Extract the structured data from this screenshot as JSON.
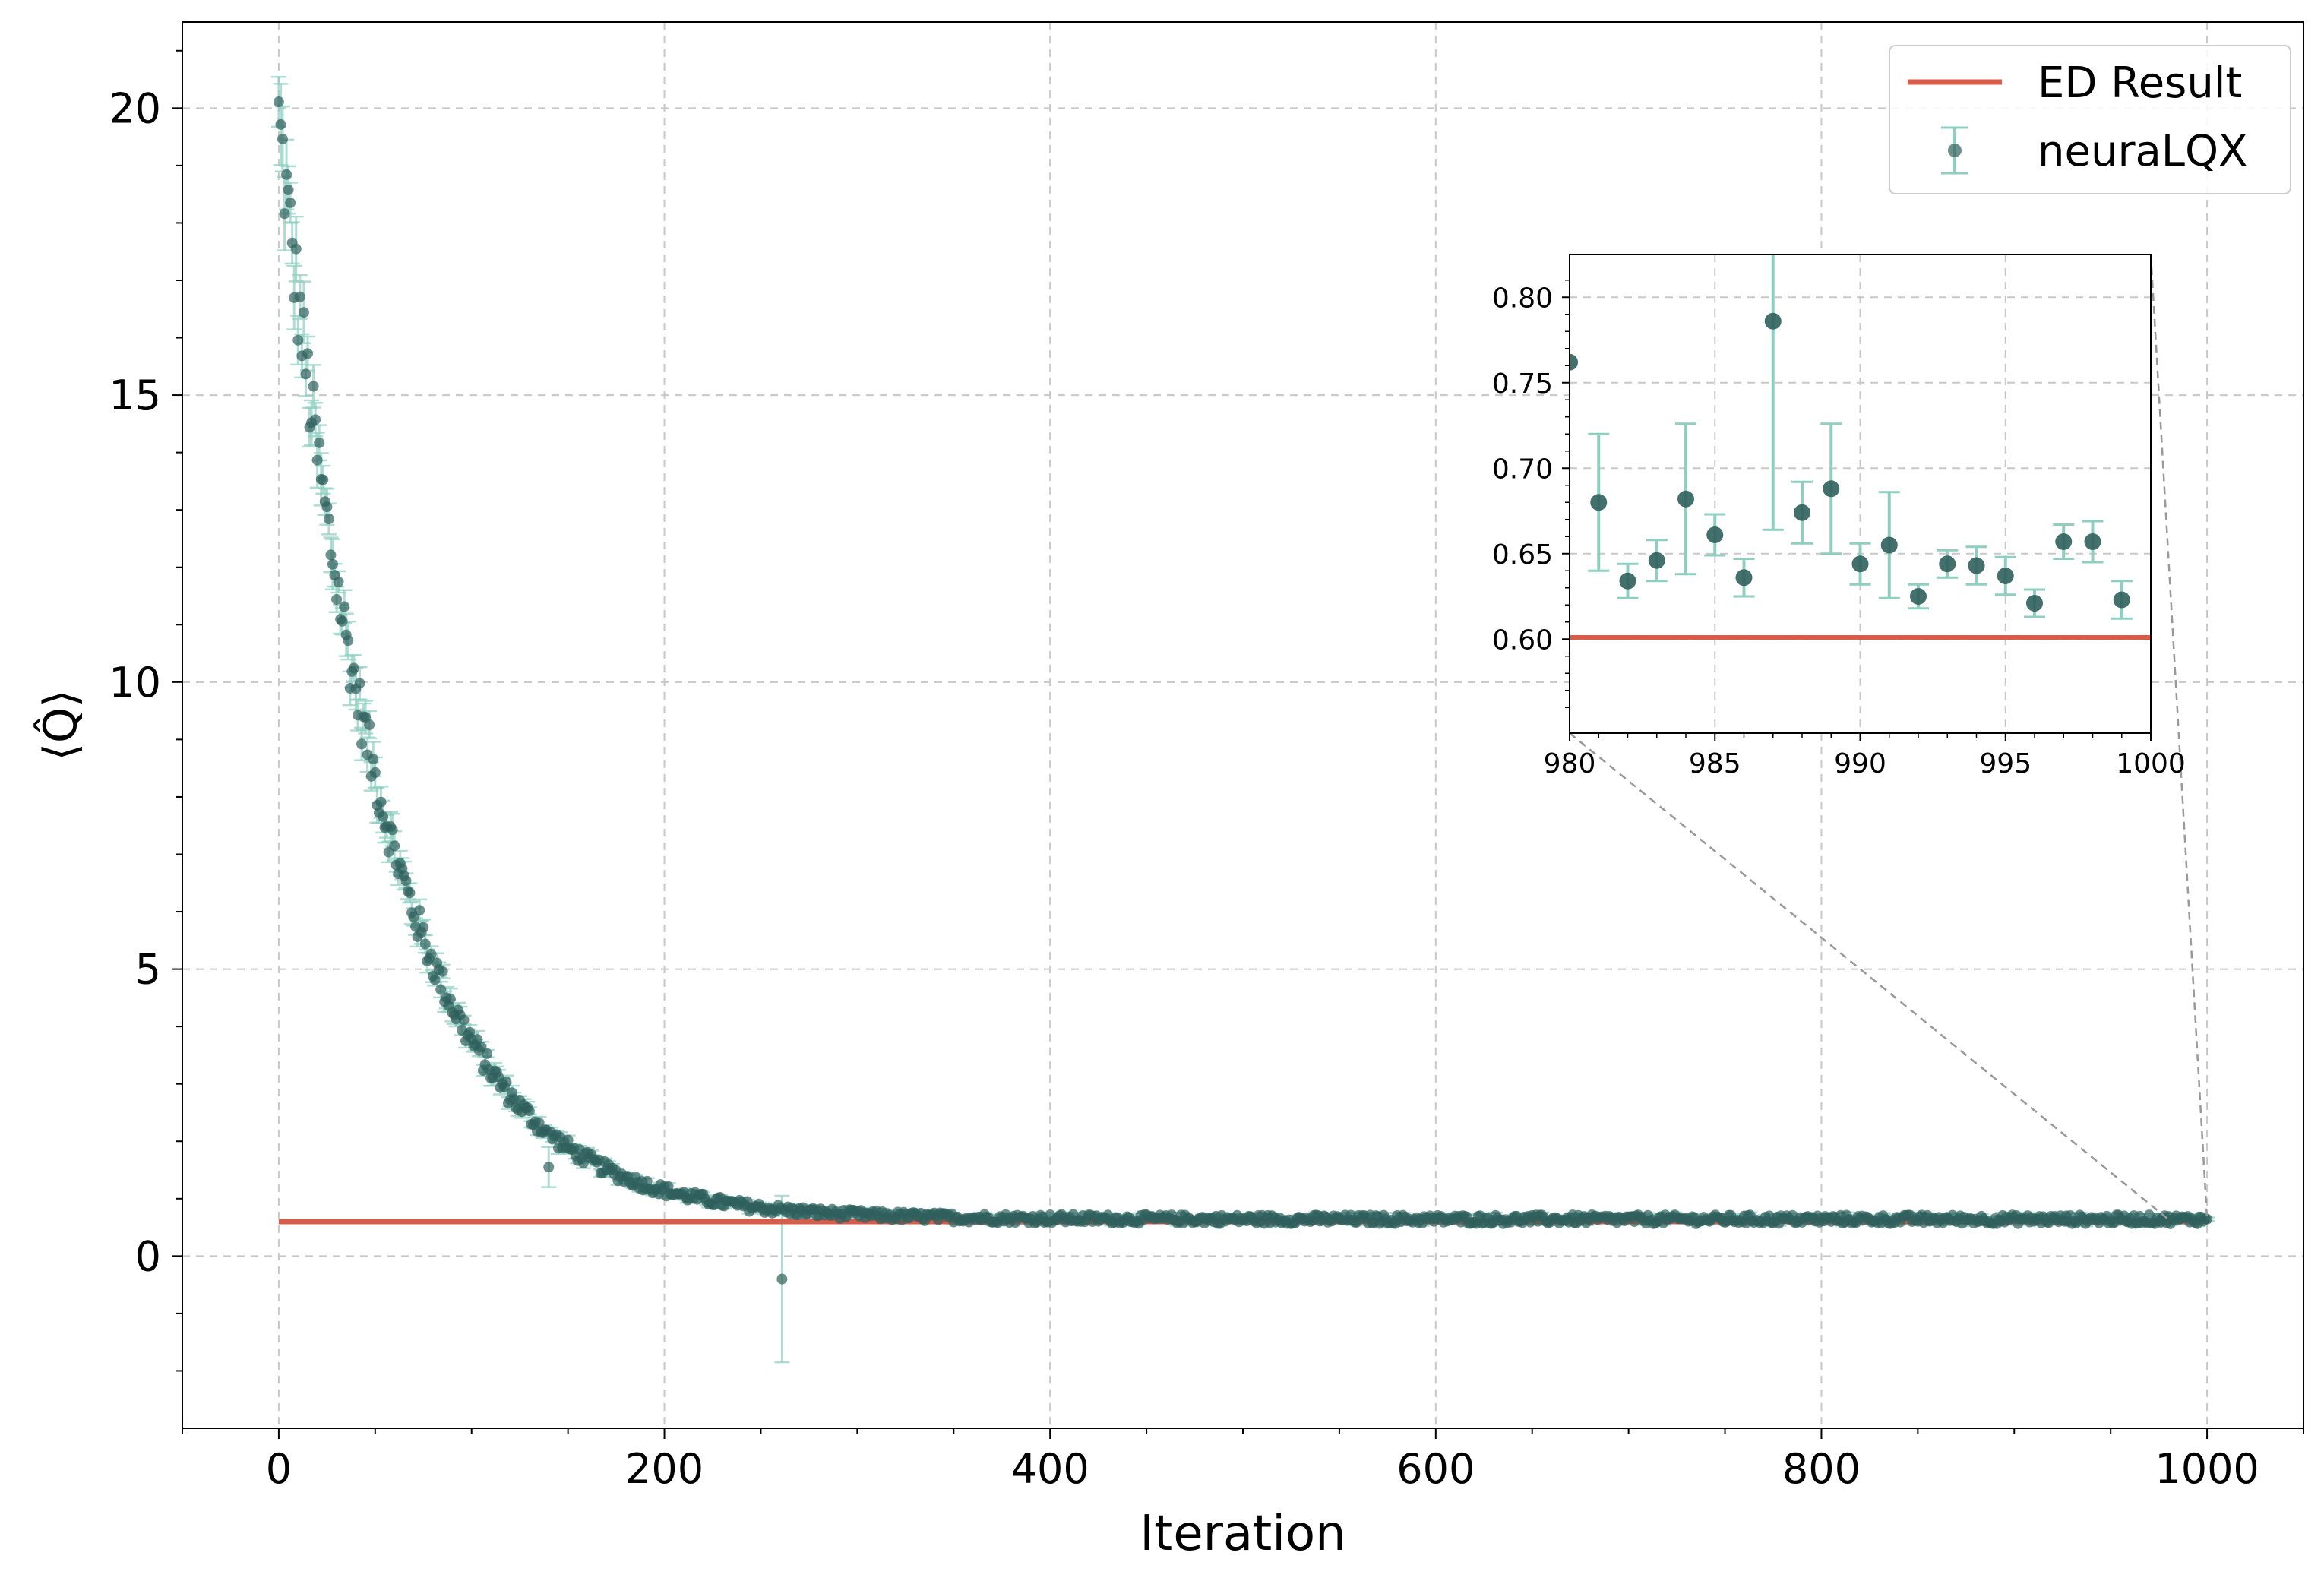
{
  "chart_data": [
    {
      "id": "main",
      "type": "scatter",
      "xlabel": "Iteration",
      "ylabel": "⟨Q̂⟩",
      "xlim": [
        -50,
        1050
      ],
      "ylim": [
        -3,
        21.5
      ],
      "x_ticks": [
        0,
        200,
        400,
        600,
        800,
        1000
      ],
      "y_ticks": [
        0,
        5,
        10,
        15,
        20
      ],
      "x_tick_labels": [
        "0",
        "200",
        "400",
        "600",
        "800",
        "1000"
      ],
      "y_tick_labels": [
        "0",
        "5",
        "10",
        "15",
        "20"
      ],
      "grid": true,
      "grid_style": "dashed",
      "legend": {
        "placement": "top-right",
        "entries": [
          {
            "label": "ED Result",
            "kind": "line",
            "color": "#d95b4a"
          },
          {
            "label": "neuraLQX",
            "kind": "errorbar-point",
            "color": "#3a6e6a"
          }
        ]
      },
      "series": [
        {
          "name": "ED Result",
          "kind": "hline",
          "y": 0.6,
          "x_range": [
            0,
            1000
          ],
          "color": "#d95b4a"
        },
        {
          "name": "neuraLQX",
          "kind": "errorbar",
          "model": {
            "description_of_points": "one point per iteration 0..1000, decaying from ~19.8 to ~0.64",
            "start_value": 19.8,
            "asymptote": 0.64,
            "decay_scale": 55,
            "n_points": 1001
          },
          "outliers": [
            {
              "x": 261,
              "y": -0.4,
              "err": 1.45
            },
            {
              "x": 140,
              "y": 1.55,
              "err": 0.35
            }
          ],
          "color": "#2f5f5c",
          "errbar_color": "#8fcfc0"
        }
      ]
    },
    {
      "id": "inset",
      "type": "scatter",
      "xlim": [
        980,
        1000
      ],
      "ylim": [
        0.545,
        0.825
      ],
      "x_ticks": [
        980,
        985,
        990,
        995,
        1000
      ],
      "y_ticks": [
        0.6,
        0.65,
        0.7,
        0.75,
        0.8
      ],
      "x_tick_labels": [
        "980",
        "985",
        "990",
        "995",
        "1000"
      ],
      "y_tick_labels": [
        "0.60",
        "0.65",
        "0.70",
        "0.75",
        "0.80"
      ],
      "grid": true,
      "grid_style": "dashed",
      "ed_result": 0.601,
      "points": [
        {
          "x": 980,
          "y": 0.762,
          "err": 0.0
        },
        {
          "x": 981,
          "y": 0.68,
          "err": 0.04
        },
        {
          "x": 982,
          "y": 0.634,
          "err": 0.01
        },
        {
          "x": 983,
          "y": 0.646,
          "err": 0.012
        },
        {
          "x": 984,
          "y": 0.682,
          "err": 0.044
        },
        {
          "x": 985,
          "y": 0.661,
          "err": 0.012
        },
        {
          "x": 986,
          "y": 0.636,
          "err": 0.011
        },
        {
          "x": 987,
          "y": 0.786,
          "err": 0.122
        },
        {
          "x": 988,
          "y": 0.674,
          "err": 0.018
        },
        {
          "x": 989,
          "y": 0.688,
          "err": 0.038
        },
        {
          "x": 990,
          "y": 0.644,
          "err": 0.012
        },
        {
          "x": 991,
          "y": 0.655,
          "err": 0.031
        },
        {
          "x": 992,
          "y": 0.625,
          "err": 0.007
        },
        {
          "x": 993,
          "y": 0.644,
          "err": 0.008
        },
        {
          "x": 994,
          "y": 0.643,
          "err": 0.011
        },
        {
          "x": 995,
          "y": 0.637,
          "err": 0.011
        },
        {
          "x": 996,
          "y": 0.621,
          "err": 0.008
        },
        {
          "x": 997,
          "y": 0.657,
          "err": 0.01
        },
        {
          "x": 998,
          "y": 0.657,
          "err": 0.012
        },
        {
          "x": 999,
          "y": 0.623,
          "err": 0.011
        }
      ],
      "zoom_source": {
        "x_range": [
          980,
          1000
        ],
        "y": 0.64
      }
    }
  ],
  "colors": {
    "ed_line": "#d95b4a",
    "point": "#2f5f5c",
    "errbar": "#8fcfc0",
    "grid": "#c8c8c8",
    "connector": "#999999"
  }
}
